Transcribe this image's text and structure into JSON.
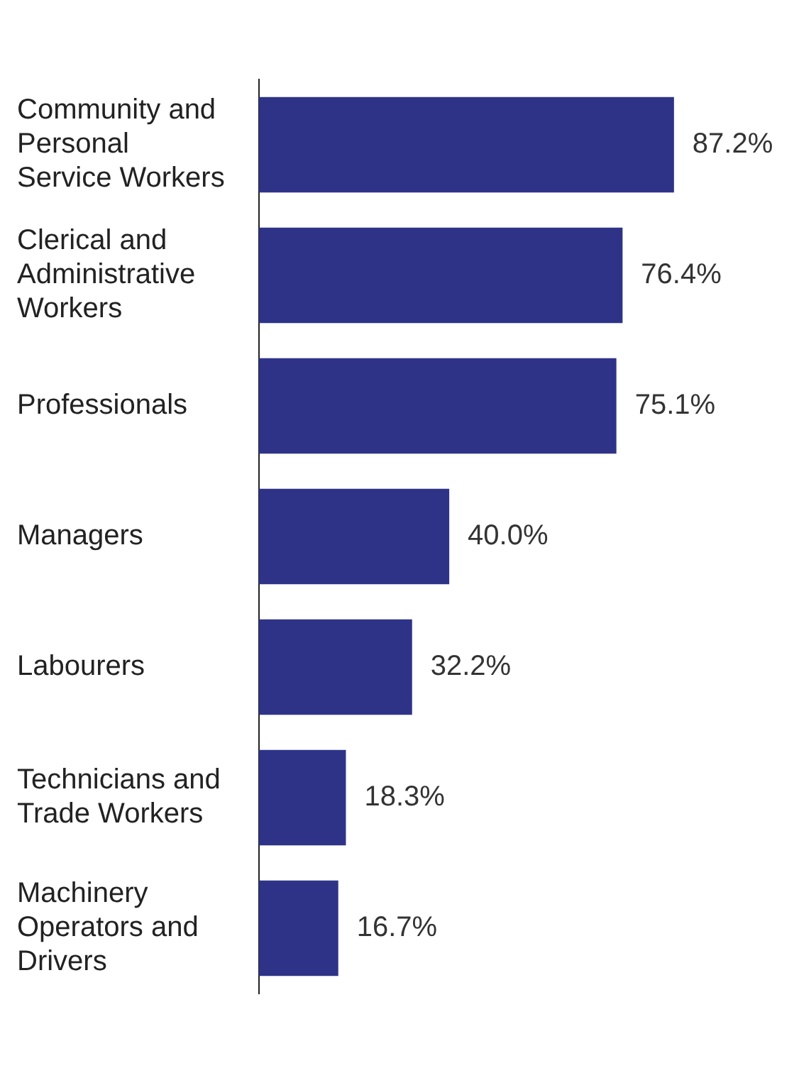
{
  "chart_data": {
    "type": "bar",
    "orientation": "horizontal",
    "categories": [
      "Community and Personal Service Workers",
      "Clerical and Administrative Workers",
      "Professionals",
      "Managers",
      "Labourers",
      "Technicians and Trade Workers",
      "Machinery Operators and Drivers"
    ],
    "values": [
      87.2,
      76.4,
      75.1,
      40.0,
      32.2,
      18.3,
      16.7
    ],
    "value_labels": [
      "87.2%",
      "76.4%",
      "75.1%",
      "40.0%",
      "32.2%",
      "18.3%",
      "16.7%"
    ],
    "color": "#2e3388",
    "grid": false,
    "legend": false
  }
}
